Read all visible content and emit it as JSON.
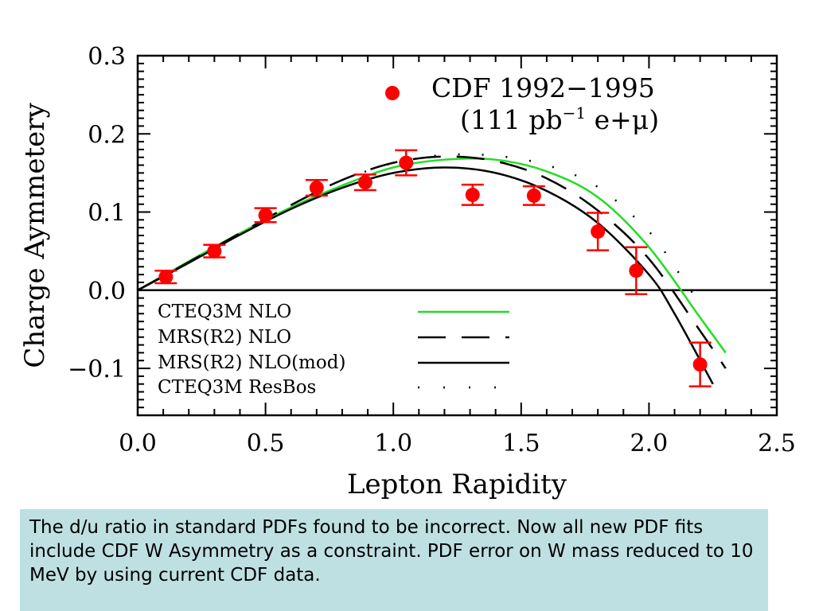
{
  "chart_data": {
    "type": "scatter",
    "xlabel": "Lepton Rapidity",
    "ylabel": "Charge Aymmetery",
    "xlim": [
      0.0,
      2.5
    ],
    "ylim": [
      -0.16,
      0.3
    ],
    "xticks": [
      "0.0",
      "0.5",
      "1.0",
      "1.5",
      "2.0",
      "2.5"
    ],
    "yticks": [
      "−0.1",
      "0.0",
      "0.1",
      "0.2",
      "0.3"
    ],
    "data_legend": {
      "label": "CDF 1992−1995",
      "sublabel_prefix": "(111 pb",
      "sublabel_sup": "−1",
      "sublabel_suffix": " e+μ)"
    },
    "series": [
      {
        "name": "CDF 1992−1995",
        "kind": "points",
        "color": "#ff0000",
        "x": [
          0.11,
          0.3,
          0.5,
          0.7,
          0.89,
          1.05,
          1.31,
          1.55,
          1.8,
          1.95,
          2.2
        ],
        "y": [
          0.017,
          0.05,
          0.096,
          0.131,
          0.138,
          0.163,
          0.122,
          0.121,
          0.075,
          0.025,
          -0.095
        ],
        "err": [
          0.008,
          0.008,
          0.009,
          0.01,
          0.01,
          0.016,
          0.013,
          0.012,
          0.024,
          0.03,
          0.028
        ]
      },
      {
        "name": "CTEQ3M NLO",
        "kind": "line",
        "style": "solid",
        "color": "#22dd22",
        "x": [
          0.0,
          0.2,
          0.4,
          0.6,
          0.8,
          1.0,
          1.2,
          1.4,
          1.6,
          1.8,
          2.0,
          2.2,
          2.3
        ],
        "y": [
          0.0,
          0.037,
          0.073,
          0.106,
          0.134,
          0.157,
          0.167,
          0.167,
          0.152,
          0.119,
          0.055,
          -0.035,
          -0.08
        ]
      },
      {
        "name": "MRS(R2) NLO",
        "kind": "line",
        "style": "dashed",
        "color": "#000000",
        "x": [
          0.0,
          0.2,
          0.4,
          0.6,
          0.8,
          1.0,
          1.2,
          1.4,
          1.6,
          1.8,
          2.0,
          2.2,
          2.3
        ],
        "y": [
          0.0,
          0.036,
          0.073,
          0.109,
          0.141,
          0.163,
          0.171,
          0.165,
          0.143,
          0.102,
          0.04,
          -0.052,
          -0.1
        ]
      },
      {
        "name": "MRS(R2) NLO(mod)",
        "kind": "line",
        "style": "solid",
        "color": "#000000",
        "x": [
          0.0,
          0.2,
          0.4,
          0.6,
          0.8,
          1.0,
          1.2,
          1.4,
          1.6,
          1.8,
          2.0,
          2.1,
          2.25
        ],
        "y": [
          0.0,
          0.035,
          0.071,
          0.104,
          0.131,
          0.15,
          0.157,
          0.15,
          0.127,
          0.086,
          0.02,
          -0.03,
          -0.12
        ]
      },
      {
        "name": "CTEQ3M ResBos",
        "kind": "line",
        "style": "dotted",
        "color": "#000000",
        "x": [
          0.8,
          1.0,
          1.2,
          1.4,
          1.6,
          1.8,
          2.0,
          2.1,
          2.2
        ],
        "y": [
          0.141,
          0.163,
          0.173,
          0.172,
          0.16,
          0.132,
          0.075,
          0.03,
          -0.018
        ]
      }
    ],
    "legend_position": "bottom-left"
  },
  "note": {
    "text": "The d/u  ratio in standard PDFs found to be incorrect. Now all new PDF fits include CDF W Asymmetry as a constraint. PDF error on W mass reduced to 10 MeV by using current CDF data."
  }
}
